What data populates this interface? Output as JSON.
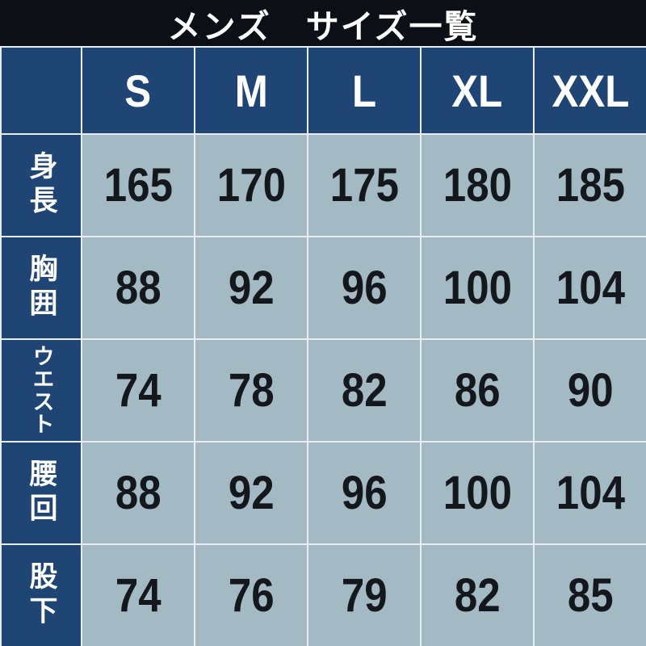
{
  "title": "メンズ　サイズ一覧",
  "colors": {
    "title_bar_bg": "#0c1016",
    "header_navy": "#1e4574",
    "cell_bg": "#a3b9c4",
    "gridline": "#e7edf0",
    "header_text": "#ffffff",
    "cell_text": "#14171b"
  },
  "chart_data": {
    "type": "table",
    "title": "メンズ　サイズ一覧",
    "columns": [
      "S",
      "M",
      "L",
      "XL",
      "XXL"
    ],
    "row_headers": [
      "身長",
      "胸囲",
      "ウエスト",
      "腰回",
      "股下"
    ],
    "rows": [
      [
        165,
        170,
        175,
        180,
        185
      ],
      [
        88,
        92,
        96,
        100,
        104
      ],
      [
        74,
        78,
        82,
        86,
        90
      ],
      [
        88,
        92,
        96,
        100,
        104
      ],
      [
        74,
        76,
        79,
        82,
        85
      ]
    ],
    "layout": "row headers on left (vertical Japanese text), size columns across top"
  }
}
